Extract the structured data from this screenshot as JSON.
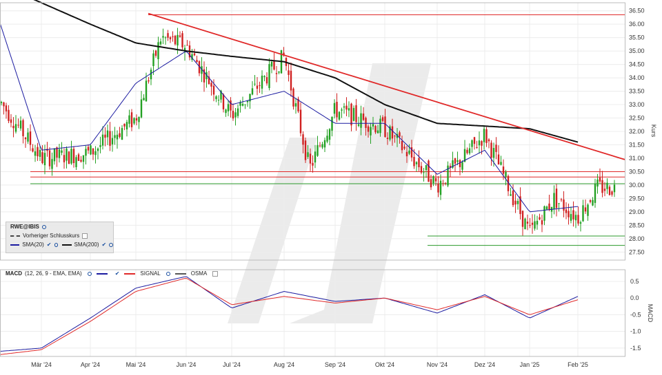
{
  "chart_data": [
    {
      "type": "candlestick",
      "symbol": "RWE@IBIS",
      "ylabel": "Kurs",
      "ylim": [
        27.2,
        36.8
      ],
      "yticks": [
        "27.50",
        "28.00",
        "28.50",
        "29.00",
        "29.50",
        "30.00",
        "30.50",
        "31.00",
        "31.50",
        "32.00",
        "32.50",
        "33.00",
        "33.50",
        "34.00",
        "34.50",
        "35.00",
        "35.50",
        "36.00",
        "36.50"
      ],
      "xticks": [
        "Mär '24",
        "Apr '24",
        "Mai '24",
        "Jun '24",
        "Jul '24",
        "Aug '24",
        "Sep '24",
        "Okt '24",
        "Nov '24",
        "Dez '24",
        "Jan '25",
        "Feb '25"
      ],
      "last_close": 29.9,
      "legend": {
        "symbol": "RWE@IBIS",
        "prev_close": "Vorheriger Schlusskurs",
        "sma20": "SMA(20)",
        "sma200": "SMA(200)"
      },
      "up_color": "#22a022",
      "down_color": "#d02020",
      "sma20_color": "#1a1aa0",
      "sma200_color": "#111111",
      "resistance_color": "#e02828",
      "support_color": "#2a9a2a",
      "horizontal_lines": [
        {
          "value": 36.35,
          "color": "red"
        },
        {
          "value": 30.5,
          "color": "red"
        },
        {
          "value": 30.3,
          "color": "red"
        },
        {
          "value": 30.05,
          "color": "green"
        },
        {
          "value": 28.1,
          "color": "green"
        },
        {
          "value": 27.75,
          "color": "green"
        }
      ],
      "trendline": {
        "from": {
          "date": "Mai '24",
          "value": 36.4
        },
        "to": {
          "date": "Feb '25",
          "value": 30.95
        }
      },
      "price_anchors": [
        [
          "Feb '24",
          33.2
        ],
        [
          "Mär '24",
          31.0
        ],
        [
          "Apr '24",
          31.2
        ],
        [
          "Mai '24",
          32.5
        ],
        [
          "Mai '24",
          35.5
        ],
        [
          "Jun '24",
          35.2
        ],
        [
          "Jul '24",
          32.6
        ],
        [
          "Aug '24",
          34.8
        ],
        [
          "Aug '24",
          30.6
        ],
        [
          "Sep '24",
          32.8
        ],
        [
          "Okt '24",
          32.1
        ],
        [
          "Nov '24",
          30.0
        ],
        [
          "Nov '24",
          30.9
        ],
        [
          "Dez '24",
          31.9
        ],
        [
          "Jan '25",
          28.2
        ],
        [
          "Jan '25",
          29.5
        ],
        [
          "Feb '25",
          28.8
        ],
        [
          "Feb '25",
          29.9
        ]
      ],
      "sma20_anchors": [
        [
          "Feb '24",
          36.2
        ],
        [
          "Mär '24",
          31.3
        ],
        [
          "Apr '24",
          31.5
        ],
        [
          "Mai '24",
          33.8
        ],
        [
          "Jun '24",
          35.0
        ],
        [
          "Jul '24",
          33.0
        ],
        [
          "Aug '24",
          33.5
        ],
        [
          "Sep '24",
          32.3
        ],
        [
          "Okt '24",
          32.3
        ],
        [
          "Nov '24",
          30.4
        ],
        [
          "Dez '24",
          31.3
        ],
        [
          "Jan '25",
          29.0
        ],
        [
          "Feb '25",
          29.2
        ]
      ],
      "sma200_anchors": [
        [
          "Feb '24",
          37.5
        ],
        [
          "Mär '24",
          36.8
        ],
        [
          "Apr '24",
          36.0
        ],
        [
          "Mai '24",
          35.3
        ],
        [
          "Jun '24",
          35.0
        ],
        [
          "Jul '24",
          34.8
        ],
        [
          "Aug '24",
          34.6
        ],
        [
          "Sep '24",
          34.0
        ],
        [
          "Okt '24",
          33.0
        ],
        [
          "Nov '24",
          32.3
        ],
        [
          "Dez '24",
          32.2
        ],
        [
          "Jan '25",
          32.1
        ],
        [
          "Feb '25",
          31.6
        ]
      ]
    },
    {
      "type": "line",
      "title": "MACD",
      "params": "(12, 26, 9 - EMA, EMA)",
      "ylabel": "MACD",
      "ylim": [
        -1.75,
        0.85
      ],
      "yticks": [
        "0.5",
        "0.0",
        "-0.5",
        "-1.0",
        "-1.5"
      ],
      "series": [
        {
          "name": "MACD",
          "color": "#1a1aa0",
          "anchors": [
            [
              "Feb '24",
              -1.6
            ],
            [
              "Mär '24",
              -1.5
            ],
            [
              "Apr '24",
              -0.6
            ],
            [
              "Mai '24",
              0.3
            ],
            [
              "Jun '24",
              0.65
            ],
            [
              "Jul '24",
              -0.3
            ],
            [
              "Aug '24",
              0.2
            ],
            [
              "Sep '24",
              -0.1
            ],
            [
              "Okt '24",
              0.0
            ],
            [
              "Nov '24",
              -0.45
            ],
            [
              "Dez '24",
              0.1
            ],
            [
              "Jan '25",
              -0.6
            ],
            [
              "Feb '25",
              0.05
            ]
          ]
        },
        {
          "name": "SIGNAL",
          "color": "#e02828",
          "anchors": [
            [
              "Feb '24",
              -1.7
            ],
            [
              "Mär '24",
              -1.55
            ],
            [
              "Apr '24",
              -0.7
            ],
            [
              "Mai '24",
              0.2
            ],
            [
              "Jun '24",
              0.6
            ],
            [
              "Jul '24",
              -0.2
            ],
            [
              "Aug '24",
              0.05
            ],
            [
              "Sep '24",
              -0.15
            ],
            [
              "Okt '24",
              0.0
            ],
            [
              "Nov '24",
              -0.35
            ],
            [
              "Dez '24",
              0.05
            ],
            [
              "Jan '25",
              -0.5
            ],
            [
              "Feb '25",
              -0.05
            ]
          ]
        }
      ],
      "osma_label": "OSMA"
    }
  ]
}
